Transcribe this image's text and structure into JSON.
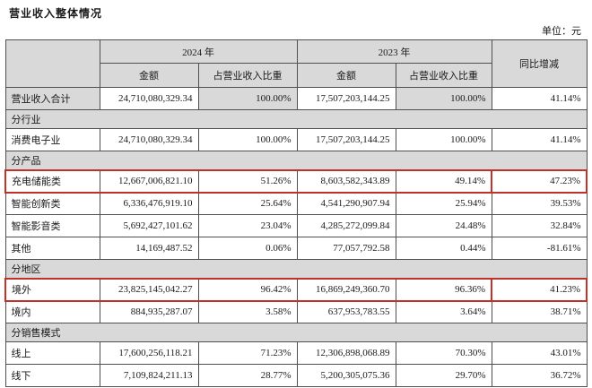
{
  "title": "营业收入整体情况",
  "unit_label": "单位：元",
  "colors": {
    "header_bg": "#d9d9d9",
    "grid_border": "#4f4f4f",
    "highlight_border": "#c03127"
  },
  "table": {
    "col_headers": {
      "year_2024": "2024 年",
      "year_2023": "2023 年",
      "yoy": "同比增减",
      "amount": "金额",
      "pct": "占营业收入比重"
    },
    "rows": [
      {
        "type": "data",
        "label": "营业收入合计",
        "a2024": "24,710,080,329.34",
        "p2024": "100.00%",
        "a2023": "17,507,203,144.25",
        "p2023": "100.00%",
        "yoy": "41.14%",
        "shaded": true
      },
      {
        "type": "section",
        "label": "分行业"
      },
      {
        "type": "data",
        "label": "消费电子业",
        "a2024": "24,710,080,329.34",
        "p2024": "100.00%",
        "a2023": "17,507,203,144.25",
        "p2023": "100.00%",
        "yoy": "41.14%"
      },
      {
        "type": "section",
        "label": "分产品"
      },
      {
        "type": "data",
        "label": "充电储能类",
        "a2024": "12,667,006,821.10",
        "p2024": "51.26%",
        "a2023": "8,603,582,343.89",
        "p2023": "49.14%",
        "yoy": "47.23%",
        "highlight": true
      },
      {
        "type": "data",
        "label": "智能创新类",
        "a2024": "6,336,476,919.10",
        "p2024": "25.64%",
        "a2023": "4,541,290,907.94",
        "p2023": "25.94%",
        "yoy": "39.53%"
      },
      {
        "type": "data",
        "label": "智能影音类",
        "a2024": "5,692,427,101.62",
        "p2024": "23.04%",
        "a2023": "4,285,272,099.84",
        "p2023": "24.48%",
        "yoy": "32.84%"
      },
      {
        "type": "data",
        "label": "其他",
        "a2024": "14,169,487.52",
        "p2024": "0.06%",
        "a2023": "77,057,792.58",
        "p2023": "0.44%",
        "yoy": "-81.61%"
      },
      {
        "type": "section",
        "label": "分地区"
      },
      {
        "type": "data",
        "label": "境外",
        "a2024": "23,825,145,042.27",
        "p2024": "96.42%",
        "a2023": "16,869,249,360.70",
        "p2023": "96.36%",
        "yoy": "41.23%",
        "highlight": true
      },
      {
        "type": "data",
        "label": "境内",
        "a2024": "884,935,287.07",
        "p2024": "3.58%",
        "a2023": "637,953,783.55",
        "p2023": "3.64%",
        "yoy": "38.71%"
      },
      {
        "type": "section",
        "label": "分销售模式"
      },
      {
        "type": "data",
        "label": "线上",
        "a2024": "17,600,256,118.21",
        "p2024": "71.23%",
        "a2023": "12,306,898,068.89",
        "p2023": "70.30%",
        "yoy": "43.01%"
      },
      {
        "type": "data",
        "label": "线下",
        "a2024": "7,109,824,211.13",
        "p2024": "28.77%",
        "a2023": "5,200,305,075.36",
        "p2023": "29.70%",
        "yoy": "36.72%"
      }
    ]
  }
}
